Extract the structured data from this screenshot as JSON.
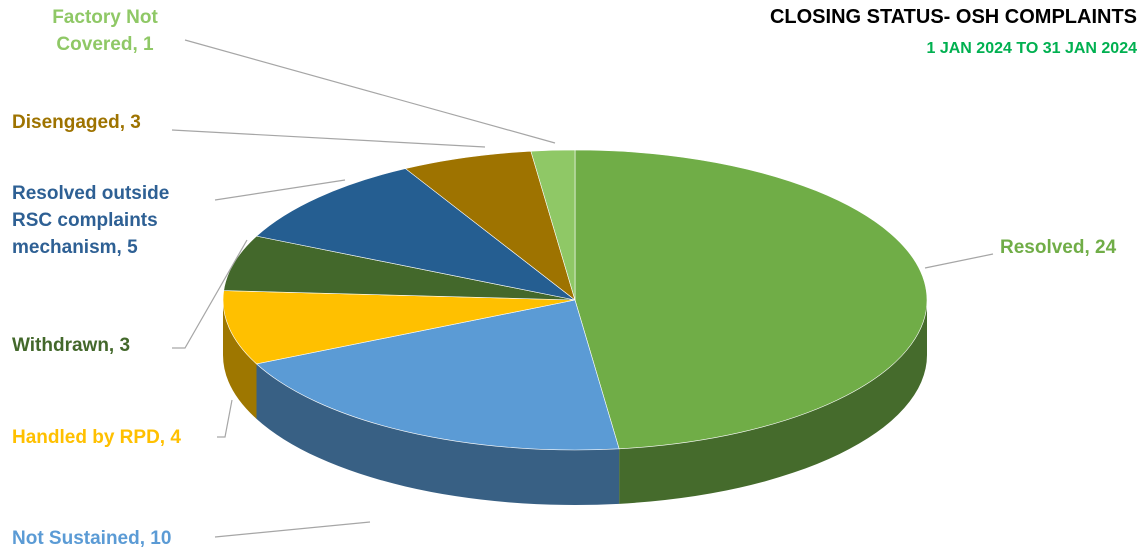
{
  "chart_data": {
    "type": "pie3d",
    "title": "CLOSING STATUS- OSH COMPLAINTS",
    "subtitle": "1 JAN 2024 TO 31 JAN 2024",
    "values": [
      24,
      10,
      4,
      3,
      5,
      3,
      1
    ],
    "value_labels": [
      "Resolved, 24",
      "Not Sustained, 10",
      "Handled by RPD, 4",
      "Withdrawn, 3",
      "Resolved outside RSC complaints mechanism, 5",
      "Disengaged, 3",
      "Factory Not Covered, 1"
    ],
    "colors": [
      "#70ad47",
      "#5b9bd5",
      "#ffc000",
      "#43682b",
      "#255e91",
      "#9e7300",
      "#8fc866"
    ],
    "label_colors": [
      "#70ad47",
      "#5b9bd5",
      "#ffc000",
      "#43682b",
      "#2e6094",
      "#9e7300",
      "#8fc866"
    ],
    "title_color": "#000000",
    "subtitle_color": "#00b050"
  }
}
